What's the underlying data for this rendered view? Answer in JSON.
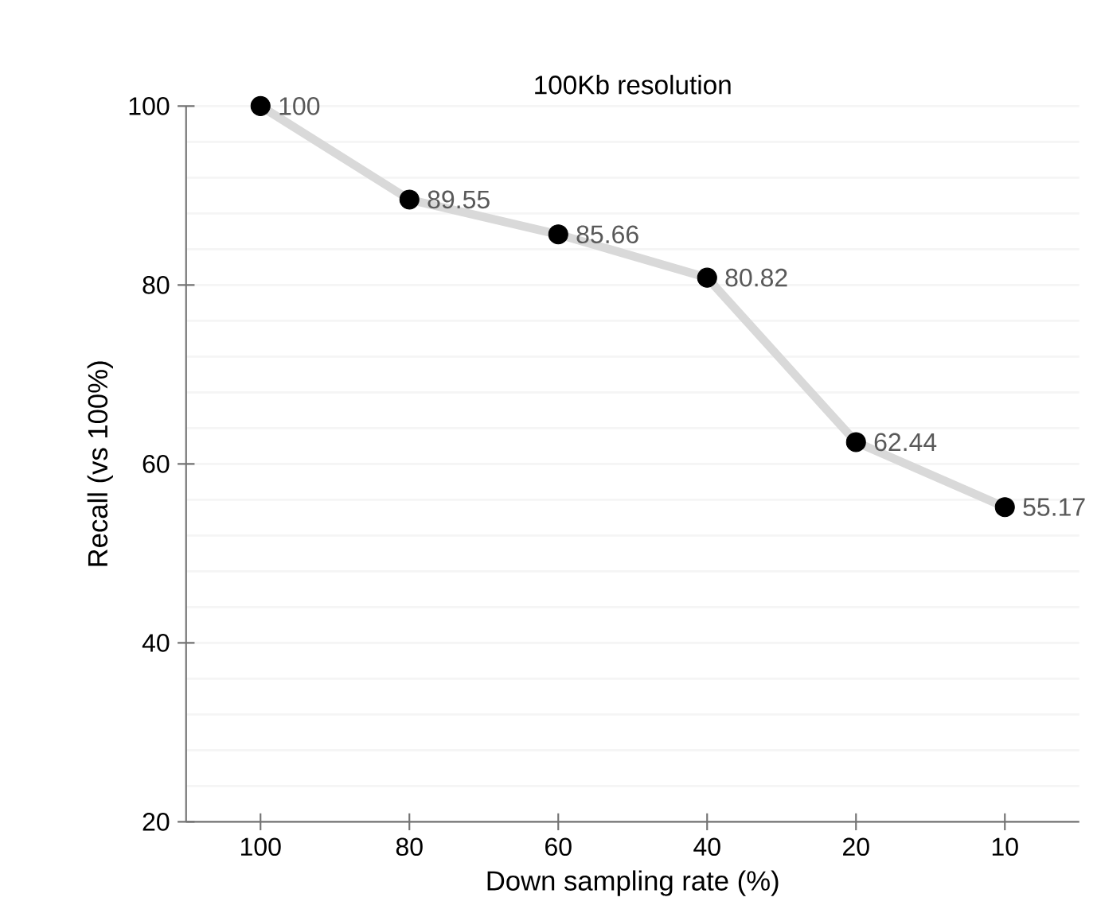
{
  "chart_data": {
    "type": "line",
    "title": "100Kb resolution",
    "xlabel": "Down sampling rate (%)",
    "ylabel": "Recall (vs 100%)",
    "categories": [
      "100",
      "80",
      "60",
      "40",
      "20",
      "10"
    ],
    "series": [
      {
        "color": "#d9d9d9",
        "values": [
          100,
          89.55,
          85.66,
          80.82,
          62.44,
          55.17
        ]
      }
    ],
    "ylim": [
      20,
      100
    ],
    "yticks": [
      20,
      40,
      60,
      80,
      100
    ],
    "grid": "y",
    "marker": "circle",
    "line_style": "solid",
    "data_labels": true,
    "legend": false
  }
}
